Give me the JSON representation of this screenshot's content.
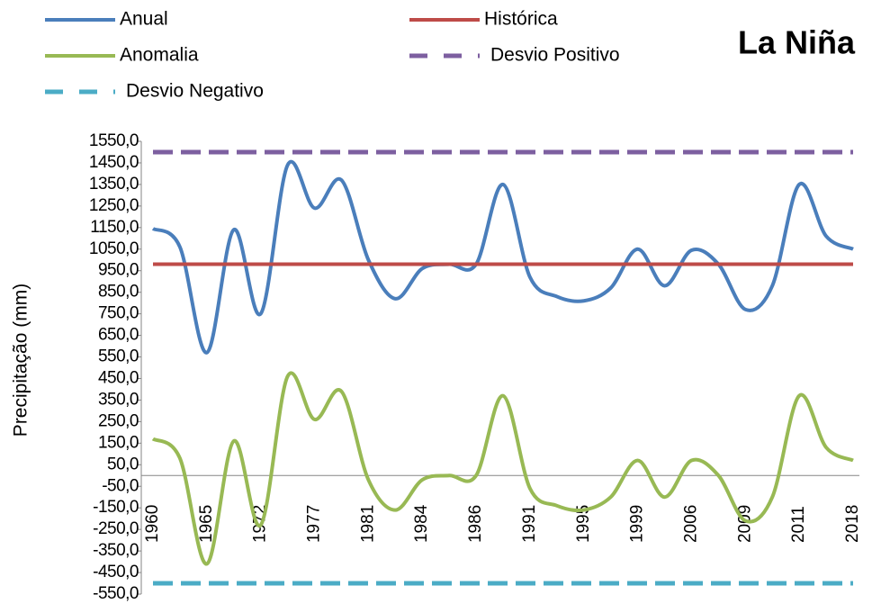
{
  "chart_data": {
    "type": "line",
    "title": "La Niña",
    "y_label": "Precipitação (mm)",
    "categories": [
      "1960",
      null,
      "1965",
      null,
      "1972",
      null,
      "1977",
      null,
      "1981",
      null,
      "1984",
      null,
      "1986",
      null,
      "1991",
      null,
      "1995",
      null,
      "1999",
      null,
      "2006",
      null,
      "2009",
      null,
      "2011",
      null,
      "2018"
    ],
    "series": [
      {
        "name": "Anual",
        "color": "#4a7ebb",
        "dashed": false,
        "values": [
          1145,
          1060,
          570,
          1140,
          750,
          1440,
          1240,
          1370,
          1000,
          820,
          960,
          980,
          980,
          1350,
          920,
          830,
          810,
          870,
          1050,
          880,
          1045,
          980,
          770,
          880,
          1350,
          1110,
          1050
        ]
      },
      {
        "name": "Histórica",
        "color": "#be4b48",
        "dashed": false,
        "values": [
          980,
          980,
          980,
          980,
          980,
          980,
          980,
          980,
          980,
          980,
          980,
          980,
          980,
          980,
          980,
          980,
          980,
          980,
          980,
          980,
          980,
          980,
          980,
          980,
          980,
          980,
          980
        ]
      },
      {
        "name": "Anomalia",
        "color": "#98b954",
        "dashed": false,
        "values": [
          170,
          80,
          -410,
          160,
          -230,
          460,
          260,
          390,
          -20,
          -160,
          -20,
          0,
          0,
          370,
          -60,
          -140,
          -160,
          -100,
          70,
          -100,
          70,
          0,
          -210,
          -100,
          370,
          130,
          70
        ]
      },
      {
        "name": "Desvio Positivo",
        "color": "#7d5fa0",
        "dashed": true,
        "values": [
          1500,
          1500,
          1500,
          1500,
          1500,
          1500,
          1500,
          1500,
          1500,
          1500,
          1500,
          1500,
          1500,
          1500,
          1500,
          1500,
          1500,
          1500,
          1500,
          1500,
          1500,
          1500,
          1500,
          1500,
          1500,
          1500,
          1500
        ]
      },
      {
        "name": "Desvio Negativo",
        "color": "#4bacc6",
        "dashed": true,
        "values": [
          -500,
          -500,
          -500,
          -500,
          -500,
          -500,
          -500,
          -500,
          -500,
          -500,
          -500,
          -500,
          -500,
          -500,
          -500,
          -500,
          -500,
          -500,
          -500,
          -500,
          -500,
          -500,
          -500,
          -500,
          -500,
          -500,
          -500
        ]
      }
    ],
    "ylim": [
      -550,
      1550
    ],
    "yticks": [
      {
        "value": 1550,
        "label": "1550,0"
      },
      {
        "value": 1450,
        "label": "1450,0"
      },
      {
        "value": 1350,
        "label": "1350,0"
      },
      {
        "value": 1250,
        "label": "1250,0"
      },
      {
        "value": 1150,
        "label": "1150,0"
      },
      {
        "value": 1050,
        "label": "1050,0"
      },
      {
        "value": 950,
        "label": "950,0"
      },
      {
        "value": 850,
        "label": "850,0"
      },
      {
        "value": 750,
        "label": "750,0"
      },
      {
        "value": 650,
        "label": "650,0"
      },
      {
        "value": 550,
        "label": "550,0"
      },
      {
        "value": 450,
        "label": "450,0"
      },
      {
        "value": 350,
        "label": "350,0"
      },
      {
        "value": 250,
        "label": "250,0"
      },
      {
        "value": 150,
        "label": "150,0"
      },
      {
        "value": 50,
        "label": "50,0"
      },
      {
        "value": -50,
        "label": "-50,0"
      },
      {
        "value": -150,
        "label": "-150,0"
      },
      {
        "value": -250,
        "label": "-250,0"
      },
      {
        "value": -350,
        "label": "-350,0"
      },
      {
        "value": -450,
        "label": "-450,0"
      },
      {
        "value": -550,
        "label": "-550,0"
      }
    ],
    "grid": false,
    "legend": "top"
  }
}
